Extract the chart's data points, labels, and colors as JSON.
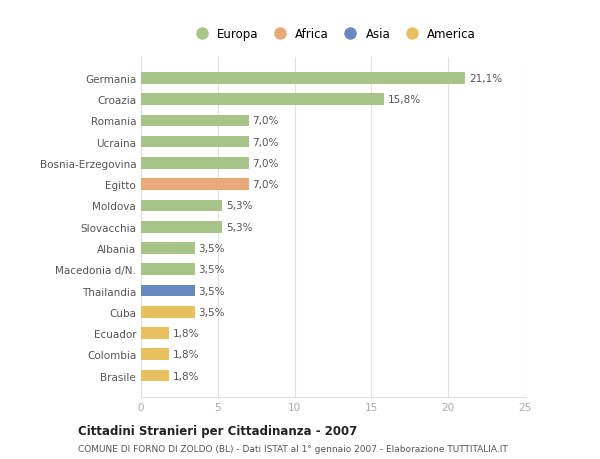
{
  "countries": [
    "Germania",
    "Croazia",
    "Romania",
    "Ucraina",
    "Bosnia-Erzegovina",
    "Egitto",
    "Moldova",
    "Slovacchia",
    "Albania",
    "Macedonia d/N.",
    "Thailandia",
    "Cuba",
    "Ecuador",
    "Colombia",
    "Brasile"
  ],
  "values": [
    21.1,
    15.8,
    7.0,
    7.0,
    7.0,
    7.0,
    5.3,
    5.3,
    3.5,
    3.5,
    3.5,
    3.5,
    1.8,
    1.8,
    1.8
  ],
  "labels": [
    "21,1%",
    "15,8%",
    "7,0%",
    "7,0%",
    "7,0%",
    "7,0%",
    "5,3%",
    "5,3%",
    "3,5%",
    "3,5%",
    "3,5%",
    "3,5%",
    "1,8%",
    "1,8%",
    "1,8%"
  ],
  "continents": [
    "Europa",
    "Europa",
    "Europa",
    "Europa",
    "Europa",
    "Africa",
    "Europa",
    "Europa",
    "Europa",
    "Europa",
    "Asia",
    "America",
    "America",
    "America",
    "America"
  ],
  "colors": {
    "Europa": "#a8c488",
    "Africa": "#e8a878",
    "Asia": "#6888c0",
    "America": "#e8c060"
  },
  "title": "Cittadini Stranieri per Cittadinanza - 2007",
  "subtitle": "COMUNE DI FORNO DI ZOLDO (BL) - Dati ISTAT al 1° gennaio 2007 - Elaborazione TUTTITALIA.IT",
  "xlim": [
    0,
    25
  ],
  "xticks": [
    0,
    5,
    10,
    15,
    20,
    25
  ],
  "background_color": "#ffffff",
  "bar_height": 0.55,
  "grid_color": "#e0e0e0",
  "label_fontsize": 7.5,
  "tick_fontsize": 7.5
}
